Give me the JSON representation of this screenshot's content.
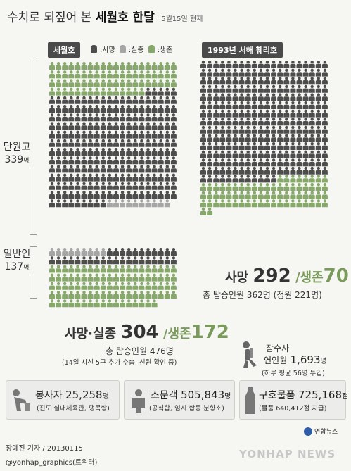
{
  "header": {
    "title_plain": "수치로 되짚어 본",
    "title_bold": "세월호 한달",
    "date_note": "5월15일 현재"
  },
  "sewol": {
    "tag": "세월호",
    "legend": [
      {
        "label": ":사망",
        "color": "#4d4d4d"
      },
      {
        "label": ":실종",
        "color": "#a6a6a6"
      },
      {
        "label": ":생존",
        "color": "#86a86a"
      }
    ],
    "danwon_label": "단원고",
    "danwon_count": "339",
    "danwon_unit": "명",
    "general_label": "일반인",
    "general_count": "137",
    "general_unit": "명",
    "dead_missing_label": "사망·실종",
    "dead_missing_value": "304",
    "survived_prefix": "/생존",
    "survived_value": "172",
    "total_line": "총 탑승인원 476명",
    "note": "(14일 시신 5구 추가 수습, 신원 확인 중)"
  },
  "seohae": {
    "tag": "1993년 서해 훼리호",
    "dead_label": "사망",
    "dead_value": "292",
    "survived_prefix": "/생존",
    "survived_value": "70",
    "total_line": "총 탑승인원 362명 (정원 221명)"
  },
  "diver": {
    "title": "잠수사",
    "line_prefix": "연인원",
    "value": "1,693",
    "unit": "명",
    "note": "(하루 평균 56명 투입)"
  },
  "stats": [
    {
      "label": "봉사자",
      "value": "25,258",
      "unit": "명",
      "note": "(진도 실내체육관, 팽목항)"
    },
    {
      "label": "조문객",
      "value": "505,843",
      "unit": "명",
      "note": "(공식합, 임시 합동 분향소)"
    },
    {
      "label": "구호물품",
      "value": "725,168",
      "unit": "점",
      "note": "(물품 640,412점 지급)"
    }
  ],
  "footer": {
    "credit": "장예진 기자 / 20130115",
    "handle": "@yonhap_graphics(트위터)",
    "logo_text": "연합뉴스",
    "watermark": "YONHAP NEWS"
  },
  "chart_data": [
    {
      "type": "pictogram",
      "name": "세월호",
      "groups": [
        {
          "label": "단원고",
          "total": 339
        },
        {
          "label": "일반인",
          "total": 137
        }
      ],
      "categories": [
        "사망·실종",
        "생존"
      ],
      "values": [
        304,
        172
      ],
      "total": 476,
      "colors": {
        "dead": "#4d4d4d",
        "missing": "#a6a6a6",
        "survived": "#86a86a"
      }
    },
    {
      "type": "pictogram",
      "name": "1993년 서해 훼리호",
      "categories": [
        "사망",
        "생존"
      ],
      "values": [
        292,
        70
      ],
      "total": 362,
      "capacity": 221,
      "colors": {
        "dead": "#4d4d4d",
        "survived": "#86a86a"
      }
    }
  ]
}
